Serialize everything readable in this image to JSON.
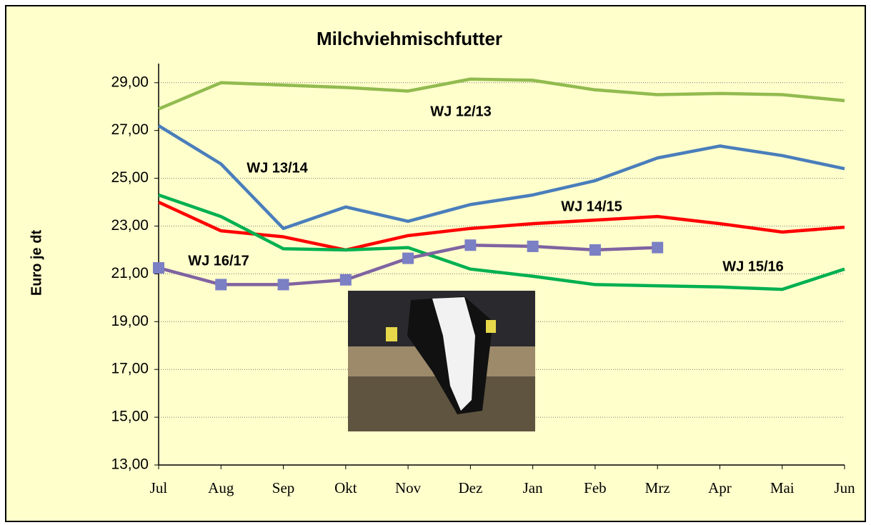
{
  "chart_data": {
    "type": "line",
    "title": "Milchviehmischfutter",
    "y_label": "Euro je dt",
    "categories": [
      "Jul",
      "Aug",
      "Sep",
      "Okt",
      "Nov",
      "Dez",
      "Jan",
      "Feb",
      "Mrz",
      "Apr",
      "Mai",
      "Jun"
    ],
    "ylim": [
      13,
      29.8
    ],
    "yticks": [
      {
        "value": 13,
        "label": "13,00"
      },
      {
        "value": 15,
        "label": "15,00"
      },
      {
        "value": 17,
        "label": "17,00"
      },
      {
        "value": 19,
        "label": "19,00"
      },
      {
        "value": 21,
        "label": "21,00"
      },
      {
        "value": 23,
        "label": "23,00"
      },
      {
        "value": 25,
        "label": "25,00"
      },
      {
        "value": 27,
        "label": "27,00"
      },
      {
        "value": 29,
        "label": "29,00"
      }
    ],
    "grid": true,
    "series": [
      {
        "name": "WJ 12/13",
        "color": "#92bb4f",
        "values": [
          27.9,
          29.0,
          28.9,
          28.8,
          28.65,
          29.15,
          29.1,
          28.7,
          28.5,
          28.55,
          28.5,
          28.25
        ]
      },
      {
        "name": "WJ 13/14",
        "color": "#4a7ebb",
        "values": [
          27.2,
          25.6,
          22.9,
          23.8,
          23.2,
          23.9,
          24.3,
          24.9,
          25.85,
          26.35,
          25.95,
          25.4
        ]
      },
      {
        "name": "WJ 14/15",
        "color": "#ff0000",
        "values": [
          24.0,
          22.8,
          22.55,
          22.0,
          22.6,
          22.9,
          23.1,
          23.25,
          23.4,
          23.1,
          22.75,
          22.95
        ]
      },
      {
        "name": "WJ 15/16",
        "color": "#00b050",
        "values": [
          24.3,
          23.4,
          22.05,
          22.0,
          22.1,
          21.2,
          20.9,
          20.55,
          20.5,
          20.45,
          20.35,
          21.2
        ]
      },
      {
        "name": "WJ 16/17",
        "color": "#7f63a1",
        "marker_color": "#7b7fc4",
        "values": [
          21.25,
          20.55,
          20.55,
          20.75,
          21.65,
          22.2,
          22.15,
          22.0,
          22.1,
          null,
          null,
          null
        ]
      }
    ]
  }
}
